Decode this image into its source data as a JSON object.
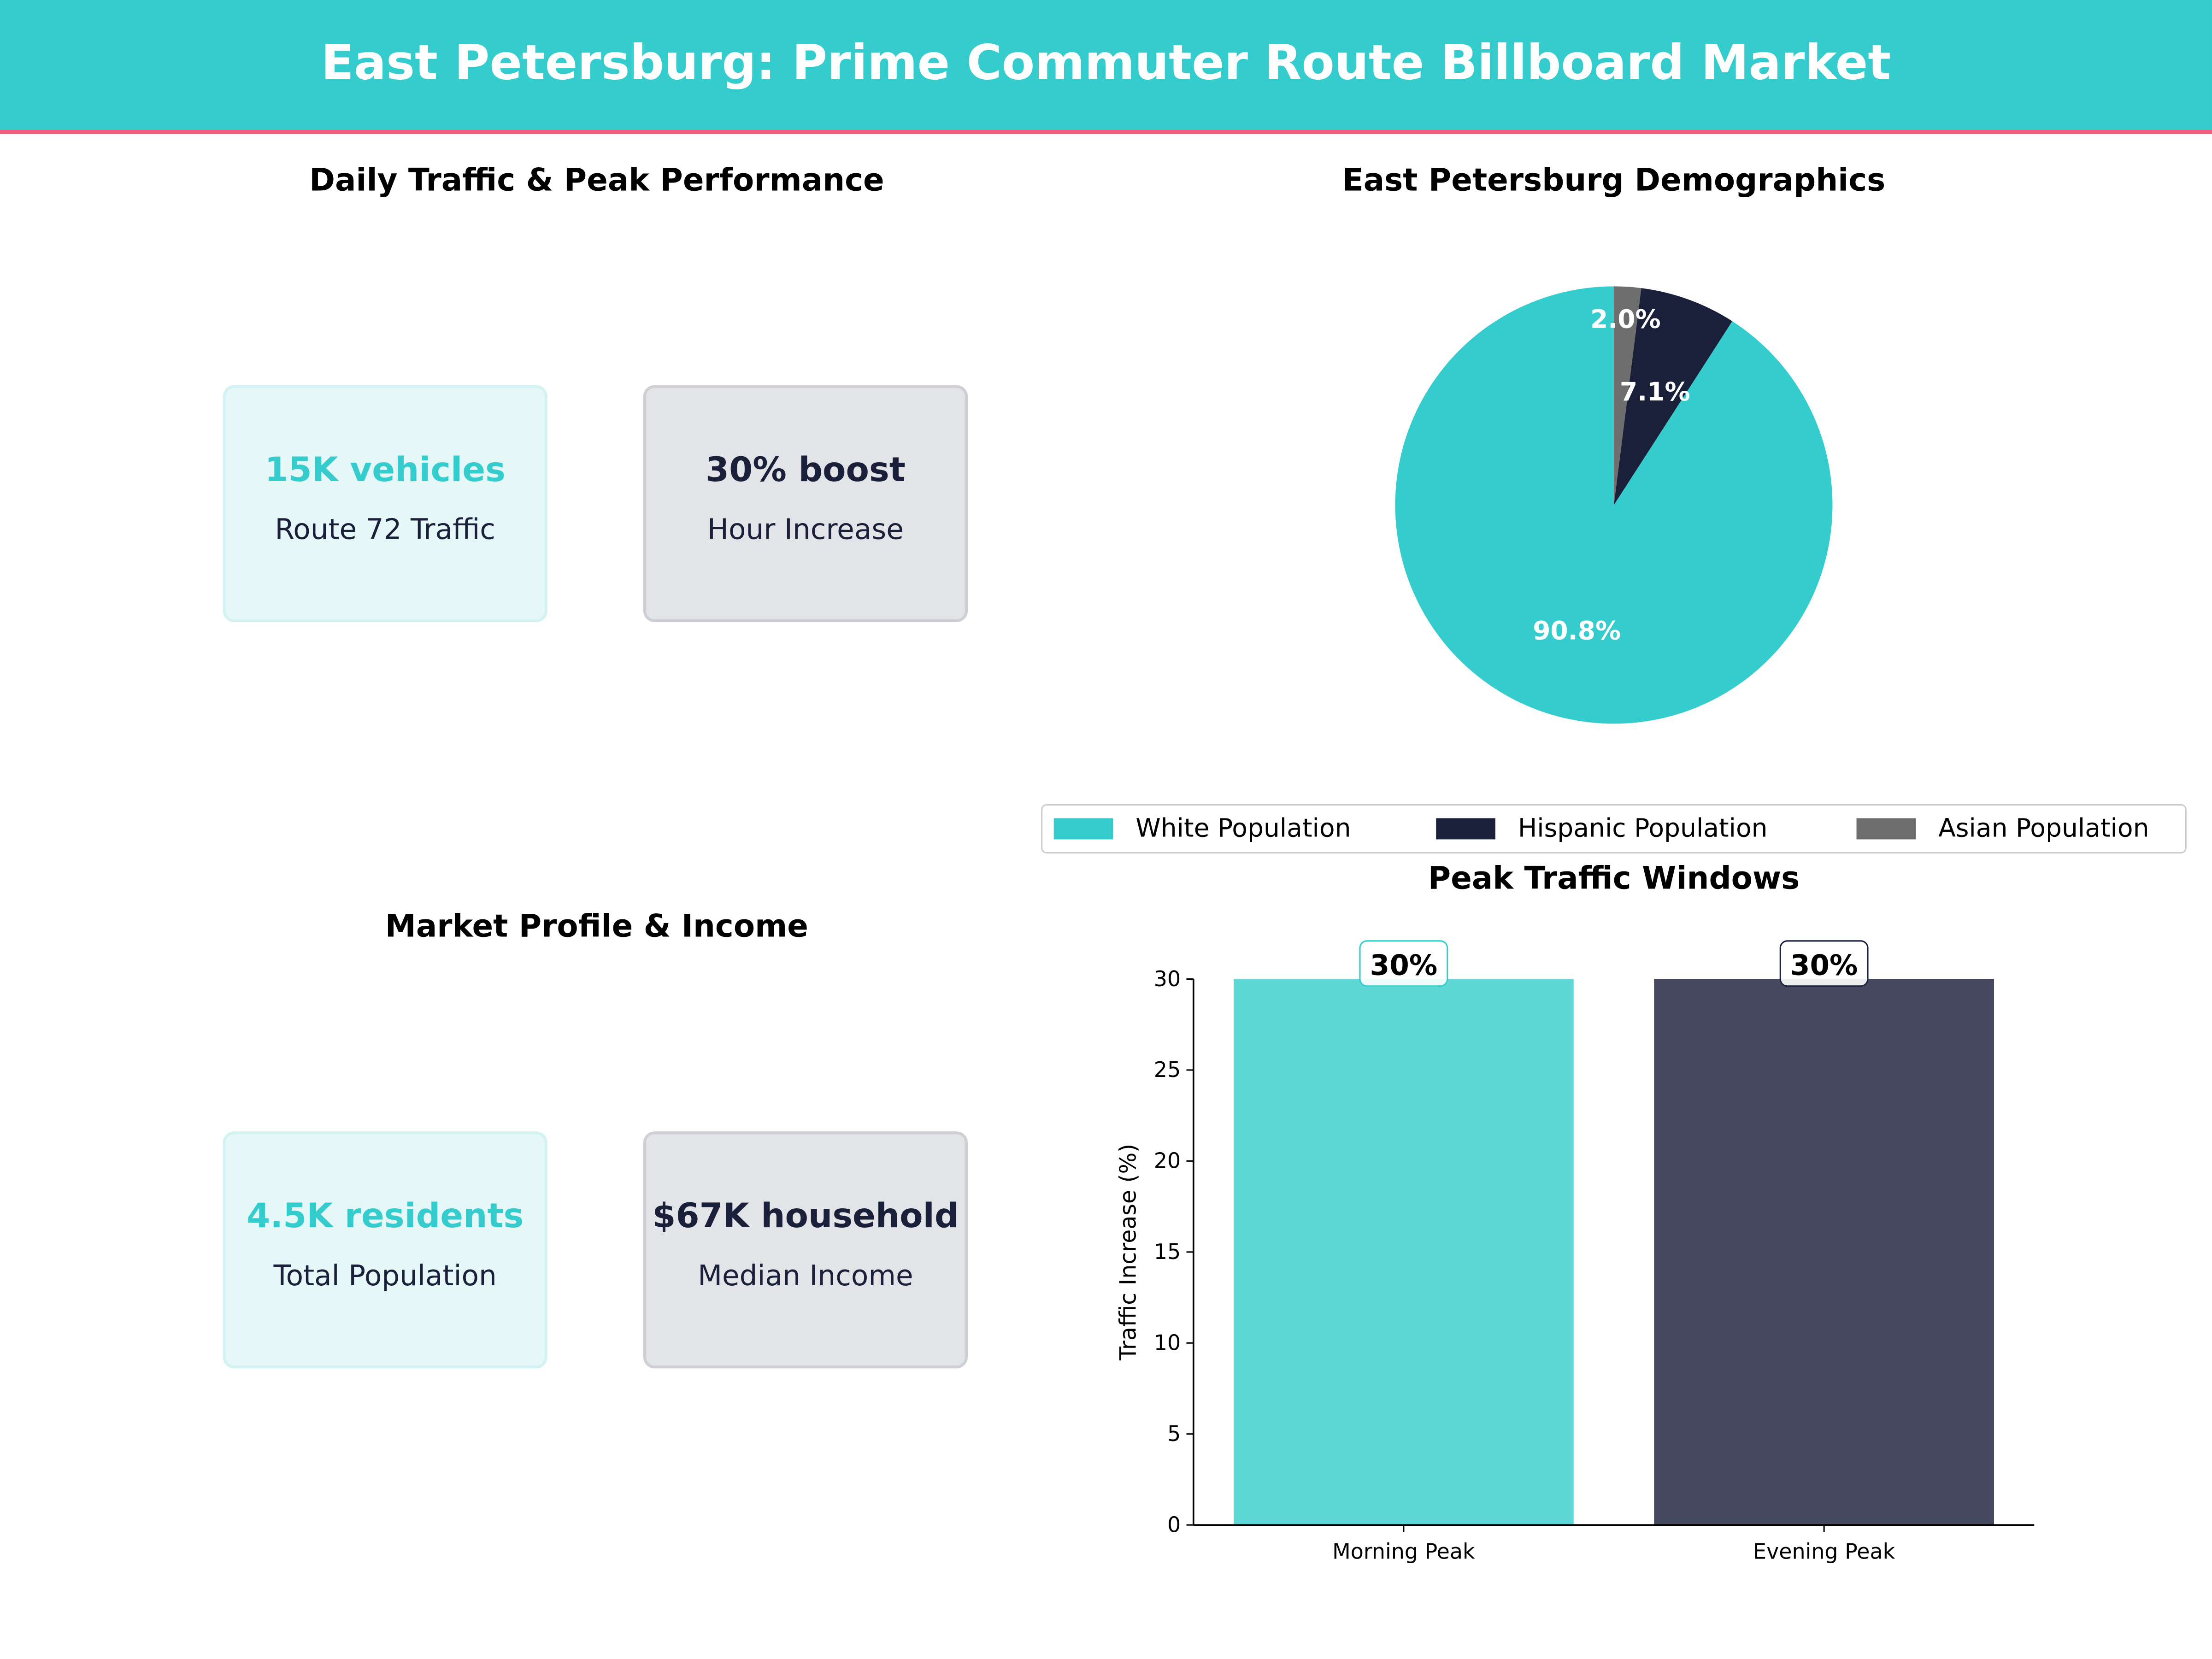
{
  "header": {
    "title": "East Petersburg: Prime Commuter Route Billboard Market"
  },
  "panels": {
    "traffic": {
      "title": "Daily Traffic & Peak Performance",
      "cards": [
        {
          "value": "15K vehicles",
          "label": "Route 72 Traffic"
        },
        {
          "value": "30% boost",
          "label": "Hour Increase"
        }
      ]
    },
    "market": {
      "title": "Market Profile & Income",
      "cards": [
        {
          "value": "4.5K residents",
          "label": "Total Population"
        },
        {
          "value": "$67K household",
          "label": "Median Income"
        }
      ]
    }
  },
  "chart_data": [
    {
      "type": "pie",
      "title": "East Petersburg Demographics",
      "categories": [
        "White Population",
        "Hispanic Population",
        "Asian Population"
      ],
      "values": [
        90.8,
        7.1,
        2.0
      ],
      "labels": [
        "90.8%",
        "7.1%",
        "2.0%"
      ],
      "colors": [
        "#34cccc",
        "#1a1f3a",
        "#6e6e6e"
      ],
      "start_angle": 90,
      "legend_placement": "bottom"
    },
    {
      "type": "bar",
      "title": "Peak Traffic Windows",
      "categories": [
        "Morning Peak",
        "Evening Peak"
      ],
      "values": [
        30,
        30
      ],
      "data_labels": [
        "30%",
        "30%"
      ],
      "colors": [
        "#5dd8d6",
        "#454a60"
      ],
      "xlabel": "",
      "ylabel": "Traffic Increase (%)",
      "ylim": [
        0,
        30
      ],
      "yticks": [
        "0",
        "5",
        "10",
        "15",
        "20",
        "25",
        "30"
      ],
      "grid": false
    }
  ]
}
